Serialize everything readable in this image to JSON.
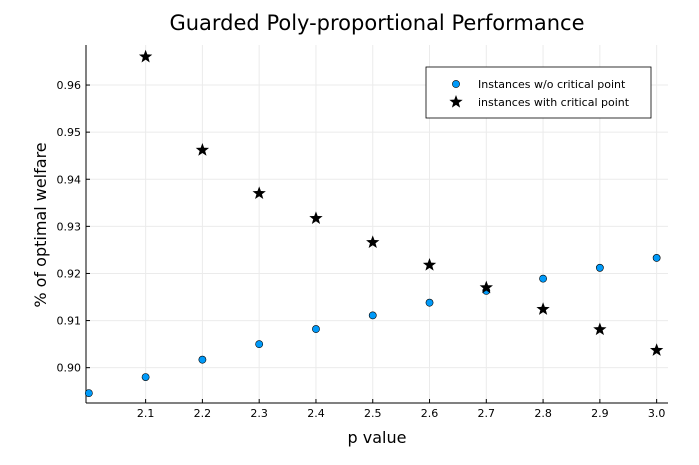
{
  "chart_data": {
    "type": "scatter",
    "title": "Guarded Poly-proportional Performance",
    "xlabel": "p value",
    "ylabel": "% of optimal welfare",
    "xlim": [
      1.995,
      3.02
    ],
    "ylim": [
      0.8925,
      0.9685
    ],
    "x_ticks": [
      2.1,
      2.2,
      2.3,
      2.4,
      2.5,
      2.6,
      2.7,
      2.8,
      2.9,
      3.0
    ],
    "x_tick_labels": [
      "2.1",
      "2.2",
      "2.3",
      "2.4",
      "2.5",
      "2.6",
      "2.7",
      "2.8",
      "2.9",
      "3.0"
    ],
    "y_ticks": [
      0.9,
      0.91,
      0.92,
      0.93,
      0.94,
      0.95,
      0.96
    ],
    "y_tick_labels": [
      "0.90",
      "0.91",
      "0.92",
      "0.93",
      "0.94",
      "0.95",
      "0.96"
    ],
    "grid": true,
    "legend_position": "top-right",
    "series": [
      {
        "name": "Instances w/o critical point",
        "marker": "circle",
        "color": "#009AF9",
        "x": [
          2.0,
          2.1,
          2.2,
          2.3,
          2.4,
          2.5,
          2.6,
          2.7,
          2.8,
          2.9,
          3.0
        ],
        "y": [
          0.8946,
          0.898,
          0.9017,
          0.905,
          0.9082,
          0.9111,
          0.9138,
          0.9163,
          0.9189,
          0.9212,
          0.9233
        ]
      },
      {
        "name": "instances with critical point",
        "marker": "star",
        "color": "#000000",
        "x": [
          2.1,
          2.2,
          2.3,
          2.4,
          2.5,
          2.6,
          2.7,
          2.8,
          2.9,
          3.0
        ],
        "y": [
          0.966,
          0.9462,
          0.937,
          0.9317,
          0.9266,
          0.9218,
          0.917,
          0.9124,
          0.9081,
          0.9037
        ]
      }
    ]
  }
}
